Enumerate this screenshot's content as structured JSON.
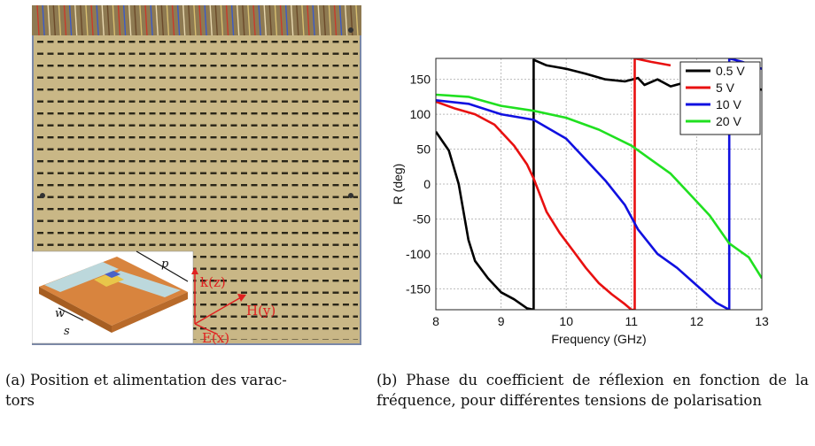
{
  "figure_a": {
    "caption": "(a) Position et alimentation des varac-\ntors",
    "labels": {
      "p": "p",
      "w": "w",
      "s": "s",
      "k": "k(z)",
      "h": "H(y)",
      "e": "E(x)"
    }
  },
  "figure_b": {
    "caption": "(b) Phase du coefficient de réflexion en fonction de la fréquence, pour différentes tensions de polarisation"
  },
  "chart_data": {
    "type": "line",
    "xlabel": "Frequency (GHz)",
    "ylabel": "R (deg)",
    "xlim": [
      8,
      13
    ],
    "ylim": [
      -180,
      180
    ],
    "xticks": [
      8,
      9,
      10,
      11,
      12,
      13
    ],
    "yticks": [
      150,
      100,
      50,
      0,
      -50,
      -100,
      -150
    ],
    "grid": true,
    "legend_position": "top-right",
    "series": [
      {
        "name": "0.5 V",
        "color": "#000000",
        "x": [
          8,
          8.2,
          8.35,
          8.5,
          8.6,
          8.8,
          9.0,
          9.2,
          9.4,
          9.5,
          9.5,
          9.7,
          10.0,
          10.3,
          10.6,
          10.9,
          11.1,
          11.2,
          11.4,
          11.6,
          11.8,
          12.0,
          12.2,
          12.4,
          12.6,
          12.8,
          13
        ],
        "values": [
          75,
          48,
          0,
          -80,
          -110,
          -135,
          -155,
          -165,
          -178,
          -180,
          178,
          170,
          165,
          158,
          150,
          147,
          152,
          142,
          150,
          140,
          145,
          138,
          143,
          140,
          138,
          140,
          135
        ]
      },
      {
        "name": "5 V",
        "color": "#e81010",
        "x": [
          8,
          8.3,
          8.6,
          8.9,
          9.2,
          9.4,
          9.5,
          9.7,
          9.9,
          10.1,
          10.3,
          10.5,
          10.7,
          10.9,
          11.0,
          11.05,
          11.05,
          11.3,
          11.6
        ],
        "values": [
          118,
          108,
          100,
          85,
          55,
          28,
          8,
          -40,
          -70,
          -95,
          -120,
          -142,
          -158,
          -172,
          -180,
          -180,
          180,
          175,
          170
        ]
      },
      {
        "name": "10 V",
        "color": "#1010e0",
        "x": [
          8,
          8.5,
          9.0,
          9.5,
          10.0,
          10.3,
          10.6,
          10.9,
          11.1,
          11.4,
          11.7,
          12.0,
          12.3,
          12.5,
          12.5,
          12.7,
          13
        ],
        "values": [
          120,
          115,
          100,
          92,
          65,
          35,
          5,
          -30,
          -65,
          -100,
          -120,
          -145,
          -170,
          -180,
          180,
          175,
          165
        ]
      },
      {
        "name": "20 V",
        "color": "#20e020",
        "x": [
          8,
          8.5,
          9.0,
          9.5,
          10.0,
          10.5,
          11.0,
          11.3,
          11.6,
          11.9,
          12.2,
          12.5,
          12.8,
          13
        ],
        "values": [
          128,
          125,
          112,
          105,
          95,
          78,
          55,
          35,
          15,
          -15,
          -45,
          -85,
          -105,
          -135
        ]
      }
    ]
  }
}
